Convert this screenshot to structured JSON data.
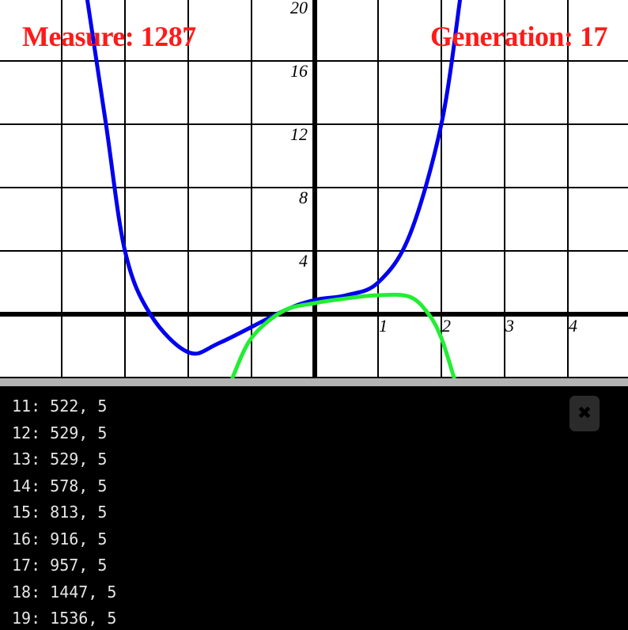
{
  "hud": {
    "measure": "Measure: 1287",
    "generation": "Generation: 17"
  },
  "chart_data": {
    "type": "line",
    "title": "",
    "xlabel": "",
    "ylabel": "",
    "xlim": [
      -5,
      5
    ],
    "ylim": [
      -4,
      20
    ],
    "grid": true,
    "x_tick_labels": [
      "1",
      "2",
      "3",
      "4"
    ],
    "y_tick_labels": [
      "4",
      "8",
      "12",
      "16",
      "20"
    ],
    "series": [
      {
        "color": "#0000ee",
        "points": [
          [
            -3.6,
            20
          ],
          [
            -3.3,
            12
          ],
          [
            -3.0,
            4
          ],
          [
            -2.6,
            0
          ],
          [
            -2.0,
            -2.4
          ],
          [
            -1.5,
            -1.8
          ],
          [
            -0.5,
            0.2
          ],
          [
            0.0,
            0.9
          ],
          [
            0.5,
            1.2
          ],
          [
            1.0,
            2.0
          ],
          [
            1.5,
            5.0
          ],
          [
            2.0,
            12.0
          ],
          [
            2.3,
            20
          ]
        ]
      },
      {
        "color": "#22ee33",
        "points": [
          [
            -1.3,
            -4
          ],
          [
            -1.0,
            -1.5
          ],
          [
            -0.5,
            0.2
          ],
          [
            0.0,
            0.7
          ],
          [
            0.5,
            1.0
          ],
          [
            1.0,
            1.2
          ],
          [
            1.5,
            1.1
          ],
          [
            1.8,
            0
          ],
          [
            2.0,
            -1.5
          ],
          [
            2.2,
            -4
          ]
        ]
      }
    ]
  },
  "console": {
    "close_icon": "close-icon",
    "lines": [
      "11: 522, 5",
      "12: 529, 5",
      "13: 529, 5",
      "14: 578, 5",
      "15: 813, 5",
      "16: 916, 5",
      "17: 957, 5",
      "18: 1447, 5",
      "19: 1536, 5"
    ]
  }
}
